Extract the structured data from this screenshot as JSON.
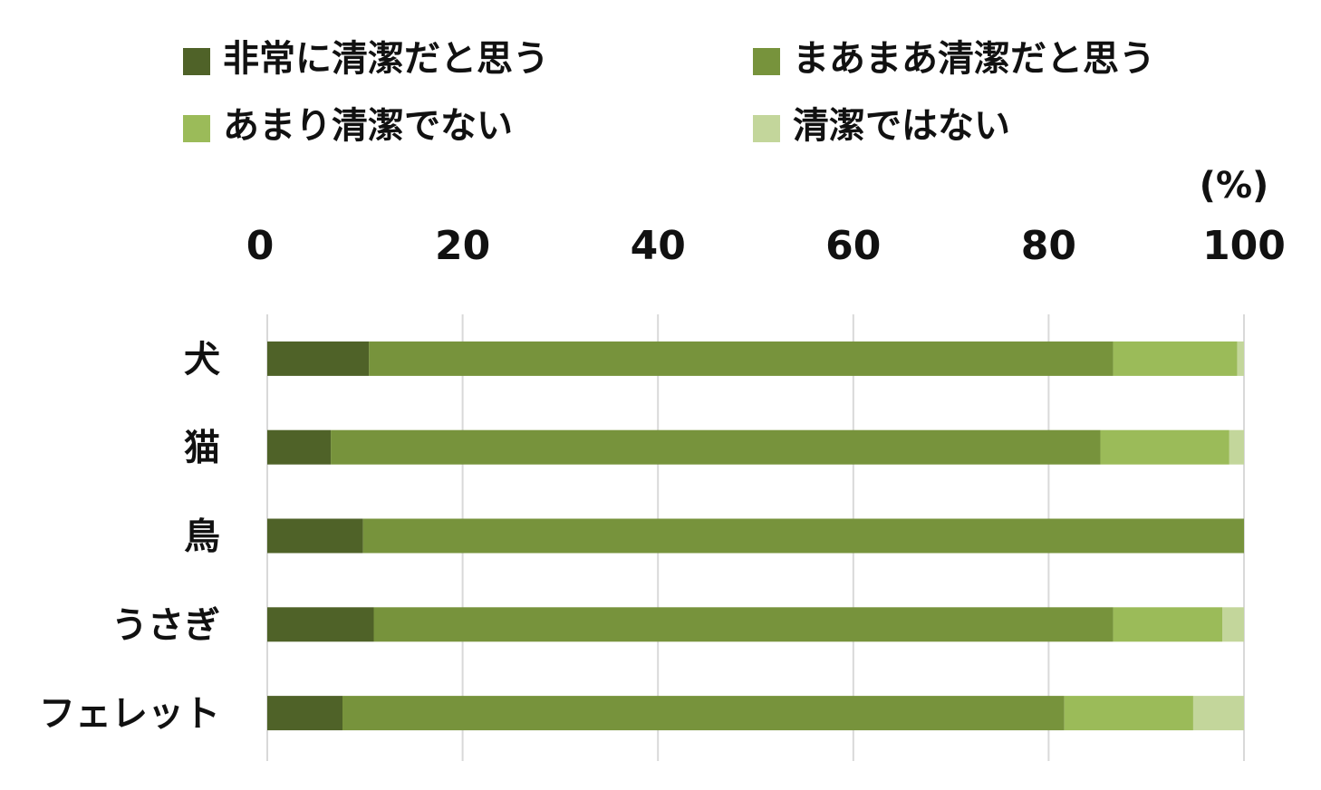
{
  "chart_data": {
    "type": "bar",
    "orientation": "horizontal",
    "stacked": true,
    "unit_label": "(%)",
    "xlim": [
      0,
      100
    ],
    "x_ticks": [
      "0",
      "20",
      "40",
      "60",
      "80",
      "100"
    ],
    "grid": true,
    "legend_position": "top",
    "categories": [
      "犬",
      "猫",
      "鳥",
      "うさぎ",
      "フェレット"
    ],
    "series": [
      {
        "name": "非常に清潔だと思う",
        "color": "#4f6228",
        "values": [
          10.4,
          6.5,
          9.8,
          10.9,
          7.7
        ]
      },
      {
        "name": "まあまあ清潔だと思う",
        "color": "#77933c",
        "values": [
          76.2,
          78.8,
          90.2,
          75.7,
          73.9
        ]
      },
      {
        "name": "あまり清潔でない",
        "color": "#9bbb59",
        "values": [
          12.7,
          13.2,
          0,
          11.2,
          13.2
        ]
      },
      {
        "name": "清潔ではない",
        "color": "#c3d69b",
        "values": [
          0.7,
          1.5,
          0,
          2.2,
          5.2
        ]
      }
    ]
  }
}
